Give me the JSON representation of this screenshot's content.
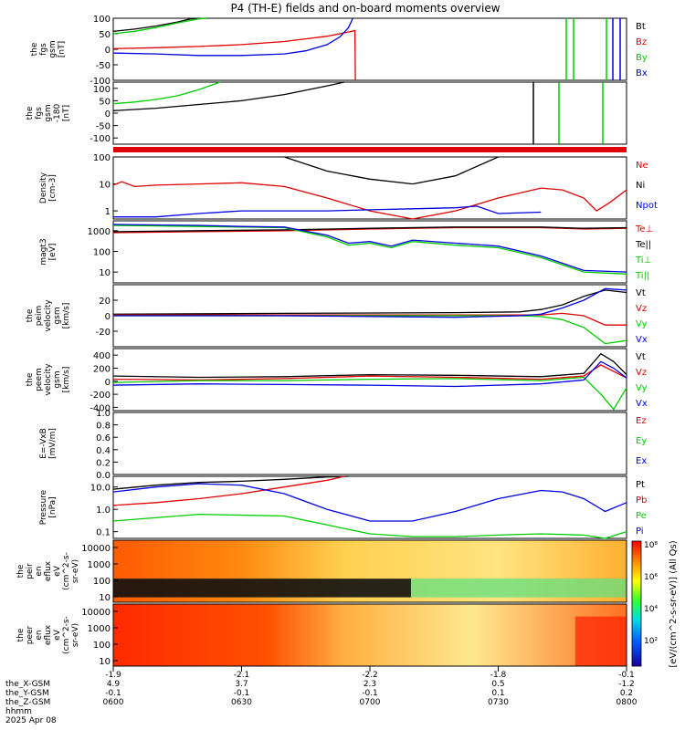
{
  "title": "P4 (TH-E) fields and on-board moments overview",
  "colors": {
    "black": "#000000",
    "red": "#e00000",
    "green": "#00cc00",
    "blue": "#0000e0"
  },
  "chart_data": [
    {
      "type": "line",
      "ylabel": [
        "the",
        "fgs",
        "gsm",
        "[nT]"
      ],
      "yticks": [
        "100",
        "50",
        "0",
        "-50",
        "-100"
      ],
      "ylim": [
        -100,
        100
      ],
      "scale": "linear",
      "legend": [
        {
          "text": "Bt",
          "color": "black"
        },
        {
          "text": "Bz",
          "color": "red"
        },
        {
          "text": "By",
          "color": "green"
        },
        {
          "text": "Bx",
          "color": "blue"
        }
      ],
      "series": [
        {
          "name": "Bt",
          "color": "black",
          "x": [
            0,
            5,
            10,
            15,
            18,
            22
          ],
          "y": [
            58,
            65,
            75,
            88,
            98,
            104
          ]
        },
        {
          "name": "Bz",
          "color": "red",
          "x": [
            0,
            10,
            20,
            30,
            40,
            50,
            56.5,
            56.6
          ],
          "y": [
            2,
            5,
            9,
            15,
            25,
            42,
            60,
            -100
          ]
        },
        {
          "name": "By",
          "color": "green",
          "x": [
            0,
            5,
            10,
            15,
            20,
            22
          ],
          "y": [
            50,
            58,
            70,
            85,
            98,
            104
          ]
        },
        {
          "name": "Bx",
          "color": "blue",
          "x": [
            0,
            10,
            20,
            30,
            40,
            45,
            50,
            53,
            55,
            56
          ],
          "y": [
            -12,
            -15,
            -20,
            -20,
            -15,
            -5,
            15,
            40,
            70,
            104
          ]
        }
      ]
    },
    {
      "type": "line",
      "ylabel": [
        "the",
        "fgs",
        "gsm",
        "-180",
        "[nT]"
      ],
      "yticks": [
        "100",
        "50",
        "0",
        "-50",
        "-100"
      ],
      "ylim": [
        -125,
        125
      ],
      "scale": "linear",
      "legend": [],
      "series": [
        {
          "name": "",
          "color": "green",
          "x": [
            0,
            5,
            10,
            15,
            20,
            25
          ],
          "y": [
            38,
            45,
            55,
            70,
            95,
            127
          ]
        },
        {
          "name": "",
          "color": "black",
          "x": [
            0,
            10,
            20,
            30,
            40,
            50,
            54
          ],
          "y": [
            10,
            20,
            35,
            50,
            75,
            110,
            127
          ]
        }
      ]
    },
    {
      "type": "bar",
      "ylabel": [],
      "legend": [],
      "series": [
        {
          "name": "",
          "color": "red",
          "x": [
            0,
            120
          ],
          "y": [
            1,
            1
          ]
        }
      ]
    },
    {
      "type": "line",
      "ylabel": [
        "Density",
        "[cm-3]"
      ],
      "yticks": [
        "100",
        "10",
        "1"
      ],
      "ylim": [
        0.5,
        100
      ],
      "scale": "log",
      "legend": [
        {
          "text": "Ne",
          "color": "red"
        },
        {
          "text": "Ni",
          "color": "black"
        },
        {
          "text": "Npot",
          "color": "blue"
        }
      ],
      "series": [
        {
          "name": "Ne",
          "color": "red",
          "x": [
            0,
            2,
            5,
            10,
            20,
            30,
            40,
            50,
            60,
            70,
            80,
            90,
            100,
            105,
            110,
            113,
            116,
            120
          ],
          "y": [
            9,
            12,
            8,
            9,
            10,
            11,
            8,
            3,
            1,
            0.5,
            1,
            3,
            7,
            6,
            3,
            1,
            2,
            6
          ]
        },
        {
          "name": "Ni",
          "color": "black",
          "x": [
            40,
            50,
            60,
            70,
            80,
            90
          ],
          "y": [
            100,
            30,
            15,
            10,
            20,
            100
          ]
        },
        {
          "name": "Npot",
          "color": "blue",
          "x": [
            0,
            10,
            20,
            30,
            40,
            50,
            60,
            70,
            80,
            85,
            90,
            100
          ],
          "y": [
            0.6,
            0.6,
            0.8,
            1,
            1,
            1,
            1.1,
            1.2,
            1.3,
            1.5,
            0.8,
            0.9
          ]
        }
      ]
    },
    {
      "type": "line",
      "ylabel": [
        "magt3",
        "[eV]"
      ],
      "yticks": [
        "1000",
        "100",
        "10"
      ],
      "ylim": [
        3,
        3000
      ],
      "scale": "log",
      "legend": [
        {
          "text": "Te⊥",
          "color": "red"
        },
        {
          "text": "Te||",
          "color": "black"
        },
        {
          "text": "Ti⊥",
          "color": "green"
        },
        {
          "text": "Ti||",
          "color": "green"
        }
      ],
      "series": [
        {
          "name": "Te⊥",
          "color": "red",
          "x": [
            0,
            20,
            40,
            60,
            80,
            100,
            110,
            120
          ],
          "y": [
            800,
            900,
            1000,
            1200,
            1400,
            1400,
            1200,
            1300
          ]
        },
        {
          "name": "Te||",
          "color": "black",
          "x": [
            0,
            20,
            40,
            60,
            80,
            100,
            110,
            120
          ],
          "y": [
            900,
            1000,
            1100,
            1300,
            1500,
            1500,
            1300,
            1400
          ]
        },
        {
          "name": "Ti⊥",
          "color": "green",
          "x": [
            0,
            10,
            20,
            30,
            40,
            50,
            55,
            60,
            65,
            70,
            80,
            90,
            100,
            110,
            120
          ],
          "y": [
            1800,
            1700,
            1600,
            1500,
            1400,
            500,
            200,
            250,
            150,
            300,
            200,
            150,
            50,
            10,
            8
          ]
        },
        {
          "name": "Ti||",
          "color": "blue",
          "x": [
            0,
            10,
            20,
            30,
            40,
            50,
            55,
            60,
            65,
            70,
            80,
            90,
            100,
            110,
            120
          ],
          "y": [
            2000,
            1900,
            1800,
            1600,
            1500,
            600,
            250,
            300,
            180,
            350,
            250,
            180,
            60,
            12,
            10
          ]
        }
      ]
    },
    {
      "type": "line",
      "ylabel": [
        "the",
        "peim",
        "velocity",
        "gsm",
        "[km/s]"
      ],
      "yticks": [
        "20",
        "0",
        "-20"
      ],
      "ylim": [
        -40,
        40
      ],
      "scale": "linear",
      "legend": [
        {
          "text": "Vt",
          "color": "black"
        },
        {
          "text": "Vz",
          "color": "red"
        },
        {
          "text": "Vy",
          "color": "green"
        },
        {
          "text": "Vx",
          "color": "blue"
        }
      ],
      "series": [
        {
          "name": "Vt",
          "color": "black",
          "x": [
            0,
            40,
            80,
            95,
            100,
            105,
            110,
            115,
            120
          ],
          "y": [
            2,
            3,
            4,
            5,
            8,
            14,
            25,
            33,
            30
          ]
        },
        {
          "name": "Vz",
          "color": "red",
          "x": [
            0,
            40,
            80,
            95,
            100,
            105,
            110,
            115,
            120
          ],
          "y": [
            1,
            1,
            1,
            1,
            1,
            3,
            0,
            -12,
            -12
          ]
        },
        {
          "name": "Vy",
          "color": "green",
          "x": [
            0,
            40,
            80,
            95,
            100,
            105,
            110,
            115,
            120
          ],
          "y": [
            0,
            0,
            0,
            0,
            -1,
            -5,
            -15,
            -36,
            -32
          ]
        },
        {
          "name": "Vx",
          "color": "blue",
          "x": [
            0,
            40,
            80,
            95,
            100,
            105,
            110,
            115,
            120
          ],
          "y": [
            0,
            0,
            -2,
            0,
            2,
            10,
            20,
            35,
            33
          ]
        }
      ]
    },
    {
      "type": "line",
      "ylabel": [
        "the",
        "peem",
        "velocity",
        "gsm",
        "[km/s]"
      ],
      "yticks": [
        "400",
        "200",
        "0",
        "-200",
        "-400"
      ],
      "ylim": [
        -450,
        500
      ],
      "scale": "linear",
      "legend": [
        {
          "text": "Vt",
          "color": "black"
        },
        {
          "text": "Vz",
          "color": "red"
        },
        {
          "text": "Vy",
          "color": "green"
        },
        {
          "text": "Vx",
          "color": "blue"
        }
      ],
      "series": [
        {
          "name": "Vt",
          "color": "black",
          "x": [
            0,
            20,
            40,
            60,
            80,
            100,
            110,
            114,
            117,
            120
          ],
          "y": [
            80,
            60,
            70,
            100,
            90,
            70,
            120,
            420,
            300,
            100
          ]
        },
        {
          "name": "Vz",
          "color": "red",
          "x": [
            0,
            20,
            40,
            60,
            80,
            100,
            110,
            114,
            117,
            120
          ],
          "y": [
            30,
            20,
            40,
            80,
            60,
            30,
            80,
            250,
            150,
            50
          ]
        },
        {
          "name": "Vy",
          "color": "green",
          "x": [
            0,
            20,
            40,
            60,
            80,
            100,
            110,
            114,
            117,
            120
          ],
          "y": [
            -20,
            10,
            10,
            30,
            40,
            10,
            60,
            -200,
            -430,
            -100
          ]
        },
        {
          "name": "Vx",
          "color": "blue",
          "x": [
            0,
            20,
            40,
            60,
            80,
            100,
            110,
            114,
            117,
            120
          ],
          "y": [
            -60,
            -40,
            -50,
            -60,
            -80,
            -40,
            20,
            300,
            200,
            50
          ]
        }
      ]
    },
    {
      "type": "line",
      "ylabel": [
        "E=-VxB",
        "[mV/m]"
      ],
      "yticks": [
        "1.0",
        "0.8",
        "0.6",
        "0.4",
        "0.2",
        "0.0"
      ],
      "ylim": [
        0,
        1
      ],
      "scale": "linear",
      "legend": [
        {
          "text": "Ez",
          "color": "red"
        },
        {
          "text": "Ey",
          "color": "green"
        },
        {
          "text": "Ex",
          "color": "blue"
        }
      ],
      "series": []
    },
    {
      "type": "line",
      "ylabel": [
        "Pressure",
        "[nPa]"
      ],
      "yticks": [
        "10.0",
        "1.0",
        "0.1"
      ],
      "ylim": [
        0.05,
        30
      ],
      "scale": "log",
      "legend": [
        {
          "text": "Pt",
          "color": "black"
        },
        {
          "text": "Pb",
          "color": "red"
        },
        {
          "text": "Pe",
          "color": "green"
        },
        {
          "text": "Pi",
          "color": "blue"
        }
      ],
      "series": [
        {
          "name": "Pt",
          "color": "black",
          "x": [
            0,
            10,
            20,
            30,
            40,
            50,
            55
          ],
          "y": [
            8,
            12,
            16,
            18,
            22,
            28,
            30
          ]
        },
        {
          "name": "Pb",
          "color": "red",
          "x": [
            0,
            10,
            20,
            30,
            40,
            50,
            54
          ],
          "y": [
            1.5,
            2,
            3,
            5,
            10,
            20,
            30
          ]
        },
        {
          "name": "Pe",
          "color": "green",
          "x": [
            0,
            20,
            40,
            50,
            60,
            70,
            80,
            90,
            100,
            110,
            115,
            120
          ],
          "y": [
            0.3,
            0.6,
            0.5,
            0.2,
            0.08,
            0.06,
            0.06,
            0.07,
            0.08,
            0.07,
            0.05,
            0.1
          ]
        },
        {
          "name": "Pi",
          "color": "blue",
          "x": [
            0,
            10,
            20,
            30,
            40,
            50,
            60,
            70,
            80,
            90,
            100,
            105,
            110,
            115,
            120
          ],
          "y": [
            6,
            10,
            14,
            12,
            5,
            1,
            0.3,
            0.3,
            0.8,
            3,
            7,
            6,
            3,
            0.8,
            2
          ]
        }
      ]
    },
    {
      "type": "heatmap",
      "ylabel": [
        "the",
        "peir",
        "en",
        "eflux",
        "eV",
        "(cm^2-s-",
        "sr-eV)"
      ],
      "yticks": [
        "10000",
        "1000",
        "100",
        "10"
      ],
      "series": []
    },
    {
      "type": "heatmap",
      "ylabel": [
        "the",
        "peer",
        "en",
        "eflux",
        "eV",
        "(cm^2-s-",
        "sr-eV)"
      ],
      "yticks": [
        "10000",
        "1000",
        "100",
        "10"
      ],
      "series": []
    }
  ],
  "colorbar": {
    "labels": [
      "10⁸",
      "10⁶",
      "10⁴",
      "10²"
    ],
    "title": "[eV/(cm^2-s-sr-eV)] (All Qs)"
  },
  "xaxis": {
    "row_labels": [
      "the_X-GSM",
      "the_Y-GSM",
      "the_Z-GSM",
      "hhmm",
      "2025 Apr 08"
    ],
    "ticks": [
      {
        "x": [
          "-1.9",
          "4.9",
          "-0.1",
          "0600"
        ]
      },
      {
        "x": [
          "-2.1",
          "3.7",
          "-0.1",
          "0630"
        ]
      },
      {
        "x": [
          "-2.2",
          "2.3",
          "-0.1",
          "0700"
        ]
      },
      {
        "x": [
          "-1.8",
          "0.5",
          "0.1",
          "0730"
        ]
      },
      {
        "x": [
          "-0.1",
          "-1.2",
          "0.2",
          "0800"
        ]
      }
    ]
  }
}
